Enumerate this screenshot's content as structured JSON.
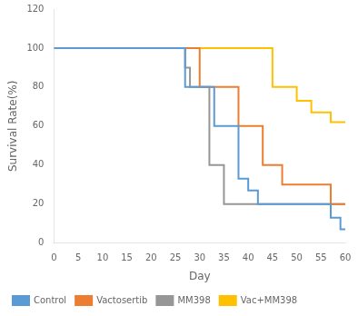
{
  "chart_data": {
    "type": "step",
    "xlabel": "Day",
    "ylabel": "Survival Rate(%)",
    "xlim": [
      0,
      60
    ],
    "ylim": [
      0,
      120
    ],
    "xticks": [
      0,
      5,
      10,
      15,
      20,
      25,
      30,
      35,
      40,
      45,
      50,
      55,
      60
    ],
    "yticks": [
      0,
      20,
      40,
      60,
      80,
      100,
      120
    ],
    "grid": false,
    "legend": "lower left",
    "series": [
      {
        "name": "Control",
        "color": "#5b9bd5",
        "x": [
          0,
          25,
          27,
          28,
          33,
          35,
          37,
          38,
          40,
          42,
          57,
          59,
          60
        ],
        "values": [
          100,
          100,
          80,
          80,
          60,
          60,
          60,
          33,
          27,
          20,
          13,
          7,
          7
        ]
      },
      {
        "name": "Vactosertib",
        "color": "#ed7d31",
        "x": [
          0,
          27,
          30,
          32,
          35,
          38,
          40,
          43,
          47,
          57,
          60
        ],
        "values": [
          100,
          100,
          80,
          80,
          80,
          60,
          60,
          40,
          30,
          20,
          20
        ]
      },
      {
        "name": "MM398",
        "color": "#969696",
        "x": [
          0,
          26,
          27,
          28,
          32,
          35,
          37,
          38,
          42,
          60
        ],
        "values": [
          100,
          100,
          90,
          80,
          40,
          20,
          20,
          20,
          20,
          20
        ]
      },
      {
        "name": "Vac+MM398",
        "color": "#ffc000",
        "x": [
          0,
          43,
          45,
          50,
          53,
          55,
          57,
          60
        ],
        "values": [
          100,
          100,
          80,
          73,
          67,
          67,
          62,
          62
        ]
      }
    ]
  }
}
